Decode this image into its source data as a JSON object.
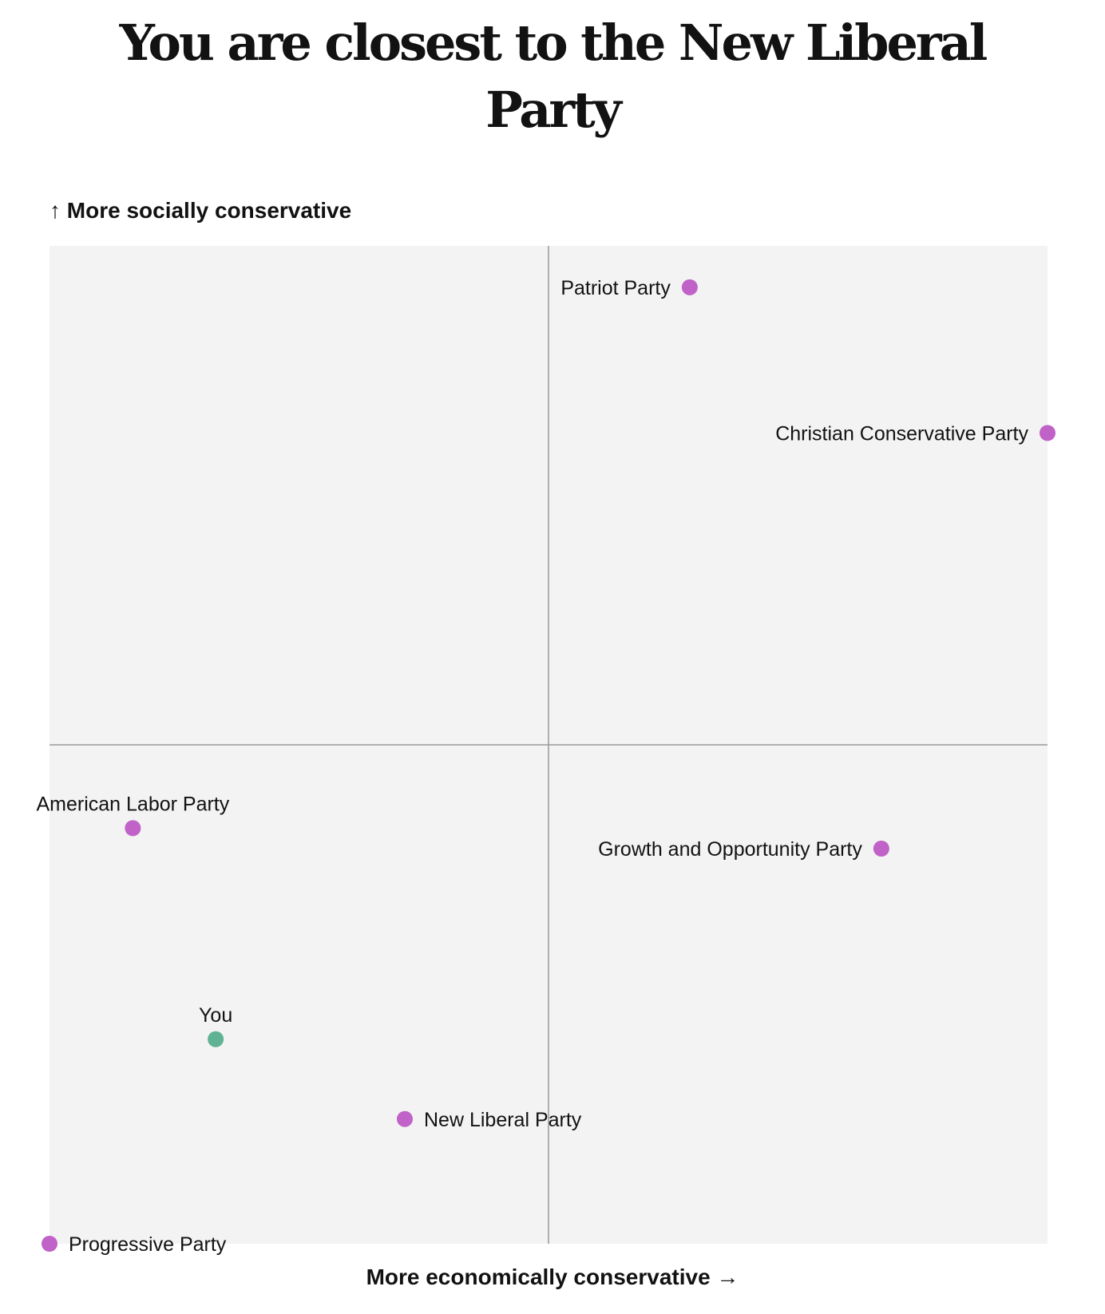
{
  "title": {
    "line1": "You are closest to the New Liberal",
    "line2": "Party"
  },
  "colors": {
    "party": "#c062c8",
    "you": "#5fb394",
    "background": "#f3f3f3",
    "axis": "#999999"
  },
  "chart_data": {
    "type": "scatter",
    "xlabel": "More economically conservative →",
    "ylabel": "↑ More socially conservative",
    "xlim": [
      -1,
      1
    ],
    "ylim": [
      -1,
      1
    ],
    "grid": false,
    "points": [
      {
        "name": "Patriot Party",
        "x": 0.283,
        "y": 0.917,
        "group": "party",
        "label_side": "left"
      },
      {
        "name": "Christian Conservative Party",
        "x": 1.0,
        "y": 0.625,
        "group": "party",
        "label_side": "left"
      },
      {
        "name": "American Labor Party",
        "x": -0.833,
        "y": -0.167,
        "group": "party",
        "label_side": "above"
      },
      {
        "name": "Growth and Opportunity Party",
        "x": 0.667,
        "y": -0.208,
        "group": "party",
        "label_side": "left"
      },
      {
        "name": "You",
        "x": -0.667,
        "y": -0.59,
        "group": "you",
        "label_side": "above"
      },
      {
        "name": "New Liberal Party",
        "x": -0.288,
        "y": -0.75,
        "group": "party",
        "label_side": "right"
      },
      {
        "name": "Progressive Party",
        "x": -1.0,
        "y": -1.0,
        "group": "party",
        "label_side": "right"
      }
    ]
  }
}
